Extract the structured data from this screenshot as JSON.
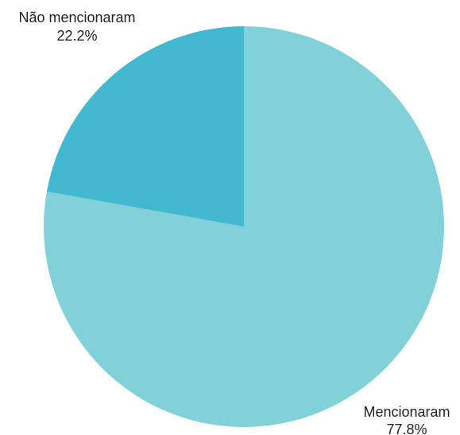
{
  "chart_data": {
    "type": "pie",
    "title": "",
    "slices": [
      {
        "label": "Mencionaram",
        "percent_label": "77.8%",
        "value": 77.8,
        "color": "#82d1d9"
      },
      {
        "label": "Não mencionaram",
        "percent_label": "22.2%",
        "value": 22.2,
        "color": "#43b8d1"
      }
    ],
    "start_angle": "12 o'clock",
    "direction": "clockwise"
  }
}
